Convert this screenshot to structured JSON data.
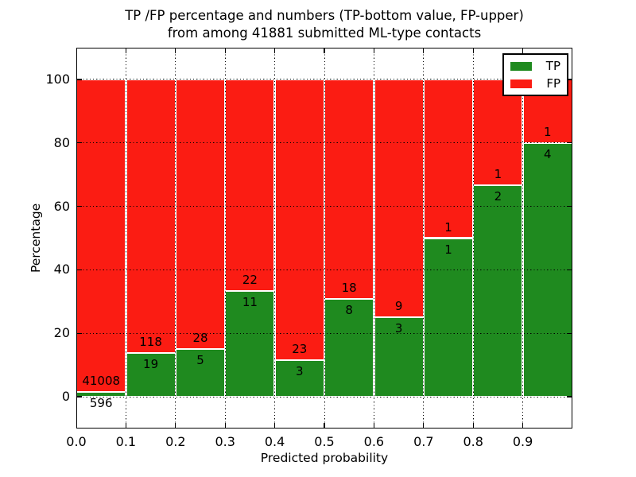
{
  "chart_data": {
    "type": "bar",
    "stacked": true,
    "normalized": "percent",
    "title_line1": "TP /FP percentage and numbers (TP-bottom value, FP-upper)",
    "title_line2": "from among 41881 submitted ML-type contacts",
    "xlabel": "Predicted probability",
    "ylabel": "Percentage",
    "xtick_labels": [
      "0.0",
      "0.1",
      "0.2",
      "0.3",
      "0.4",
      "0.5",
      "0.6",
      "0.7",
      "0.8",
      "0.9"
    ],
    "ytick_values": [
      0,
      20,
      40,
      60,
      80,
      100
    ],
    "ylim": [
      -10,
      110
    ],
    "xlim": [
      0.0,
      1.0
    ],
    "bin_width": 0.1,
    "grid": "dotted",
    "series": [
      {
        "name": "TP",
        "color": "#1f8a1f",
        "values": [
          596,
          19,
          5,
          11,
          3,
          8,
          3,
          1,
          2,
          4
        ]
      },
      {
        "name": "FP",
        "color": "#fb1c13",
        "values": [
          41008,
          118,
          28,
          22,
          23,
          18,
          9,
          1,
          1,
          1
        ]
      }
    ],
    "tp_percent_heights": [
      1.43,
      13.87,
      15.15,
      33.33,
      11.54,
      30.77,
      25.0,
      50.0,
      66.67,
      80.0
    ],
    "legend": {
      "position": "upper right",
      "entries": [
        "TP",
        "FP"
      ]
    }
  }
}
